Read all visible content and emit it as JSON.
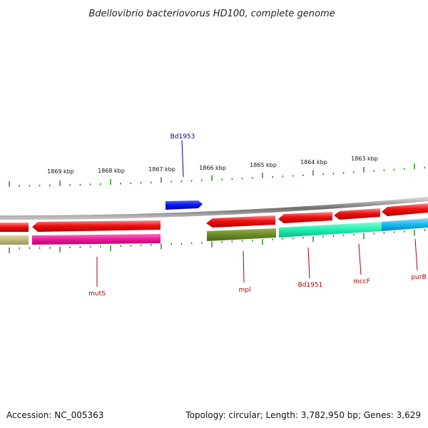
{
  "title": "Bdellovibrio bacteriovorus HD100, complete genome",
  "footer": {
    "accession": "Accession: NC_005363",
    "summary": "Topology: circular; Length: 3,782,950 bp; Genes: 3,629"
  },
  "scale_labels": [
    "1869 kbp",
    "1868 kbp",
    "1867 kbp",
    "1866 kbp",
    "1865 kbp",
    "1864 kbp",
    "1863 kbp"
  ],
  "colors": {
    "backbone": "#8a8a8a",
    "tick": "#2e8b1e",
    "gene_label_forward": "#000099",
    "gene_label_reverse": "#aa0000",
    "cds_red": "#ee1111",
    "blue_gene": "#0a1aee",
    "olive": "#bfb878",
    "magenta": "#ee1599",
    "dark_olive": "#6b8a25",
    "spring_green": "#1ef0b0",
    "sky_blue": "#15b8f0"
  },
  "gene_labels": [
    {
      "id": "bd1953",
      "text": "Bd1953",
      "strand": "forward"
    },
    {
      "id": "muts",
      "text": "mutS",
      "strand": "reverse"
    },
    {
      "id": "mpl",
      "text": "mpl",
      "strand": "reverse"
    },
    {
      "id": "bd1951",
      "text": "Bd1951",
      "strand": "reverse"
    },
    {
      "id": "mccf",
      "text": "mccF",
      "strand": "reverse"
    },
    {
      "id": "purb",
      "text": "purB",
      "strand": "reverse"
    }
  ]
}
